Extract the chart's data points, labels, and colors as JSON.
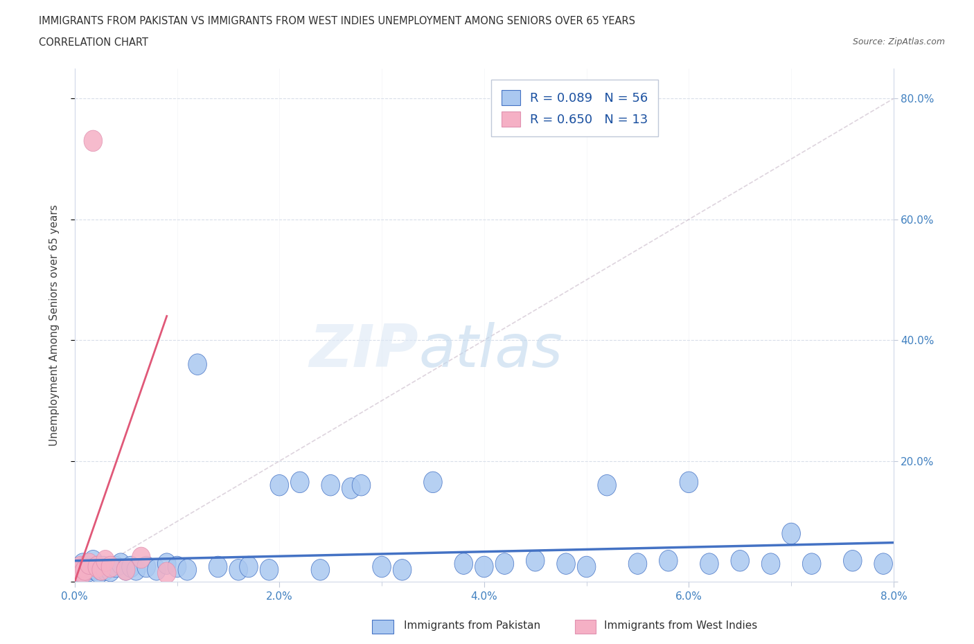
{
  "title_line1": "IMMIGRANTS FROM PAKISTAN VS IMMIGRANTS FROM WEST INDIES UNEMPLOYMENT AMONG SENIORS OVER 65 YEARS",
  "title_line2": "CORRELATION CHART",
  "source": "Source: ZipAtlas.com",
  "ylabel": "Unemployment Among Seniors over 65 years",
  "legend_label_1": "Immigrants from Pakistan",
  "legend_label_2": "Immigrants from West Indies",
  "r1": "0.089",
  "n1": "56",
  "r2": "0.650",
  "n2": "13",
  "color_pakistan": "#aac8f0",
  "color_west_indies": "#f5b0c5",
  "color_pakistan_line": "#4472c4",
  "color_west_indies_line": "#e05878",
  "xlim": [
    0,
    8.0
  ],
  "ylim": [
    0,
    85
  ],
  "xticks": [
    0,
    2,
    4,
    6,
    8
  ],
  "yticks": [
    0,
    20,
    40,
    60,
    80
  ],
  "pakistan_x": [
    0.04,
    0.06,
    0.08,
    0.1,
    0.12,
    0.14,
    0.16,
    0.18,
    0.2,
    0.22,
    0.24,
    0.26,
    0.28,
    0.3,
    0.35,
    0.4,
    0.45,
    0.5,
    0.55,
    0.6,
    0.7,
    0.8,
    0.9,
    1.0,
    1.1,
    1.2,
    1.4,
    1.6,
    1.7,
    1.9,
    2.0,
    2.2,
    2.4,
    2.5,
    2.7,
    2.8,
    3.0,
    3.2,
    3.5,
    3.8,
    4.0,
    4.2,
    4.5,
    4.8,
    5.0,
    5.2,
    5.5,
    5.8,
    6.0,
    6.2,
    6.5,
    6.8,
    7.0,
    7.2,
    7.6,
    7.9
  ],
  "pakistan_y": [
    2.0,
    1.5,
    3.0,
    2.5,
    2.0,
    1.8,
    2.2,
    3.5,
    2.0,
    2.5,
    1.5,
    2.0,
    2.5,
    2.0,
    1.8,
    2.5,
    3.0,
    2.0,
    2.5,
    2.0,
    2.5,
    2.0,
    3.0,
    2.5,
    2.0,
    36.0,
    2.5,
    2.0,
    2.5,
    2.0,
    16.0,
    16.5,
    2.0,
    16.0,
    15.5,
    16.0,
    2.5,
    2.0,
    16.5,
    3.0,
    2.5,
    3.0,
    3.5,
    3.0,
    2.5,
    16.0,
    3.0,
    3.5,
    16.5,
    3.0,
    3.5,
    3.0,
    8.0,
    3.0,
    3.5,
    3.0
  ],
  "west_indies_x": [
    0.04,
    0.06,
    0.08,
    0.1,
    0.14,
    0.18,
    0.22,
    0.26,
    0.3,
    0.35,
    0.5,
    0.65,
    0.9
  ],
  "west_indies_y": [
    2.0,
    2.5,
    1.5,
    2.0,
    3.0,
    73.0,
    2.5,
    2.0,
    3.5,
    2.5,
    2.0,
    4.0,
    1.5
  ],
  "pak_reg_x0": 0.0,
  "pak_reg_x1": 8.0,
  "pak_reg_y0": 3.5,
  "pak_reg_y1": 6.5,
  "wi_reg_x0": 0.0,
  "wi_reg_x1": 0.9,
  "wi_reg_y0": 0.0,
  "wi_reg_y1": 44.0,
  "diag_x0": 0.0,
  "diag_x1": 8.0,
  "diag_y0": 0.0,
  "diag_y1": 80.0
}
